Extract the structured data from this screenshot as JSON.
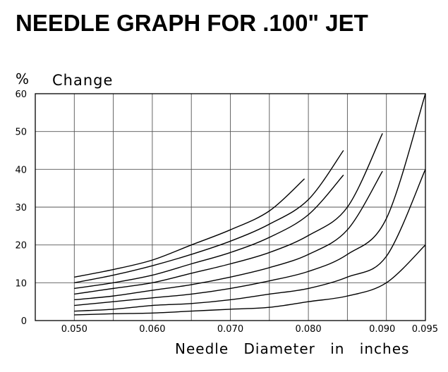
{
  "chart_data": {
    "type": "line",
    "title": "NEEDLE GRAPH FOR .100\" JET",
    "ylabel_unit": "%",
    "ylabel": "Change",
    "xlabel": "Needle Diameter in inches",
    "xlim": [
      0.045,
      0.095
    ],
    "ylim": [
      0,
      60
    ],
    "xticks": [
      0.05,
      0.06,
      0.07,
      0.08,
      0.09,
      0.095
    ],
    "xtick_labels": [
      "0.050",
      "0.060",
      "0.070",
      "0.080",
      "0.090",
      "0.095"
    ],
    "yticks": [
      0,
      10,
      20,
      30,
      40,
      50,
      60
    ],
    "ytick_labels": [
      "0",
      "10",
      "20",
      "30",
      "40",
      "50",
      "60"
    ],
    "grid": true,
    "series": [
      {
        "x": [
          0.05,
          0.055,
          0.06,
          0.065,
          0.07,
          0.075,
          0.0795
        ],
        "y": [
          11.5,
          13.5,
          16,
          20,
          24,
          29,
          37.5
        ]
      },
      {
        "x": [
          0.05,
          0.055,
          0.06,
          0.065,
          0.07,
          0.075,
          0.08,
          0.0845
        ],
        "y": [
          10,
          12,
          14.5,
          17.5,
          21,
          25.5,
          32,
          45
        ]
      },
      {
        "x": [
          0.05,
          0.055,
          0.06,
          0.065,
          0.07,
          0.075,
          0.08,
          0.0845
        ],
        "y": [
          8.5,
          10,
          12,
          15,
          18,
          22,
          28,
          38.5
        ]
      },
      {
        "x": [
          0.05,
          0.055,
          0.06,
          0.065,
          0.07,
          0.075,
          0.08,
          0.085,
          0.0895
        ],
        "y": [
          7,
          8.5,
          10,
          12.5,
          15,
          18,
          22.5,
          30,
          49.5
        ]
      },
      {
        "x": [
          0.05,
          0.055,
          0.06,
          0.065,
          0.07,
          0.075,
          0.08,
          0.085,
          0.0895
        ],
        "y": [
          5.5,
          6.5,
          8,
          9.5,
          11.5,
          14,
          17.5,
          24,
          39.5
        ]
      },
      {
        "x": [
          0.05,
          0.055,
          0.06,
          0.065,
          0.07,
          0.075,
          0.08,
          0.085,
          0.09,
          0.095
        ],
        "y": [
          4,
          5,
          6,
          7,
          8.5,
          10.5,
          13,
          17.5,
          27,
          60
        ]
      },
      {
        "x": [
          0.05,
          0.055,
          0.06,
          0.065,
          0.07,
          0.075,
          0.08,
          0.085,
          0.09,
          0.095
        ],
        "y": [
          2.5,
          3,
          4,
          4.5,
          5.5,
          7,
          8.5,
          11.5,
          17,
          40
        ]
      },
      {
        "x": [
          0.05,
          0.055,
          0.06,
          0.065,
          0.07,
          0.075,
          0.08,
          0.085,
          0.09,
          0.095
        ],
        "y": [
          1.5,
          1.8,
          2,
          2.5,
          3,
          3.5,
          5,
          6.5,
          10,
          20
        ]
      }
    ]
  }
}
